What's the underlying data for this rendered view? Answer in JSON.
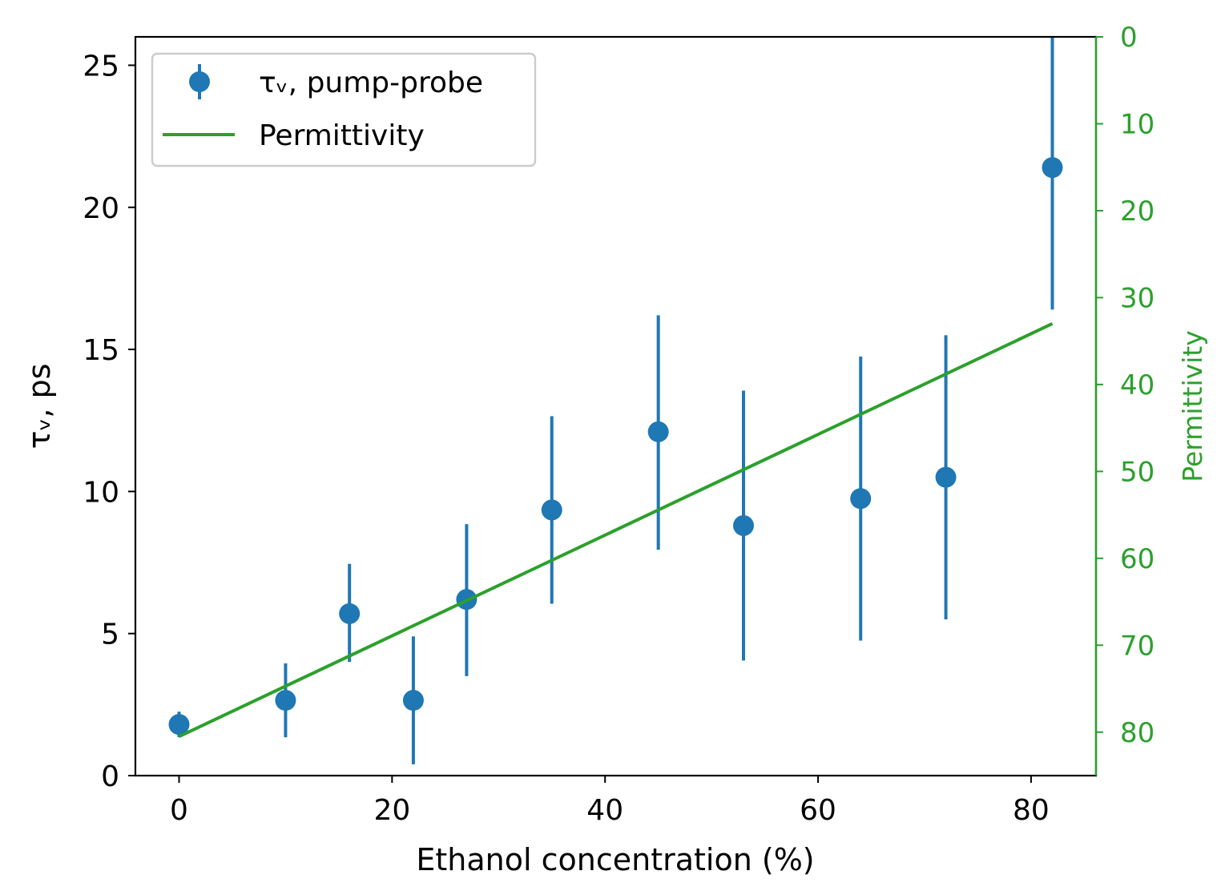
{
  "chart_data": {
    "type": "scatter",
    "xlabel": "Ethanol concentration (%)",
    "ylabel": "τᵥ, ps",
    "y2label": "Permittivity",
    "xlim": [
      -4.1,
      86.1
    ],
    "ylim": [
      0,
      26
    ],
    "y2lim": [
      85,
      0
    ],
    "y2_inverted": true,
    "xticks": [
      0,
      20,
      40,
      60,
      80
    ],
    "yticks": [
      0,
      5,
      10,
      15,
      20,
      25
    ],
    "y2ticks": [
      0,
      10,
      20,
      30,
      40,
      50,
      60,
      70,
      80
    ],
    "legend_position": "top-left",
    "grid": false,
    "colors": {
      "pump_probe": "#1f77b4",
      "permittivity": "#2ca02c",
      "axis": "#000000"
    },
    "series": [
      {
        "name": "τᵥ, pump-probe",
        "kind": "errorbar",
        "x": [
          0,
          10,
          16,
          22,
          27,
          35,
          45,
          53,
          64,
          72,
          82
        ],
        "y": [
          1.8,
          2.65,
          5.7,
          2.65,
          6.2,
          9.35,
          12.1,
          8.8,
          9.75,
          10.5,
          21.4
        ],
        "yerr_low": [
          1.35,
          1.35,
          4.0,
          0.4,
          3.5,
          6.05,
          7.95,
          4.05,
          4.75,
          5.5,
          16.4
        ],
        "yerr_high": [
          2.25,
          3.95,
          7.45,
          4.9,
          8.85,
          12.65,
          16.2,
          13.55,
          14.75,
          15.5,
          26.5
        ]
      },
      {
        "name": "Permittivity",
        "kind": "line",
        "axis": "right",
        "x": [
          0,
          82
        ],
        "y": [
          80.5,
          33.0
        ]
      }
    ]
  }
}
